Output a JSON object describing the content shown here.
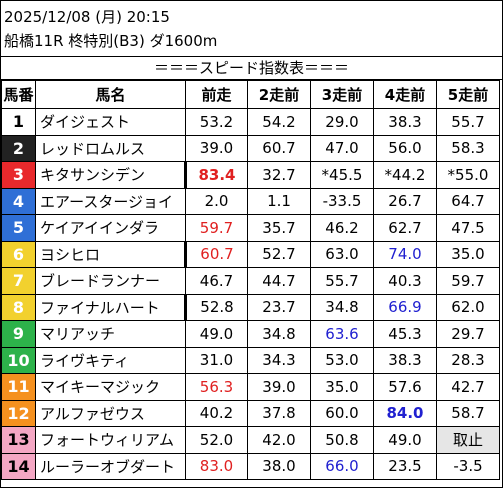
{
  "header": {
    "datetime": "2025/12/08 (月) 20:15",
    "race": "船橋11R 柊特別(B3) ダ1600m",
    "banner": "＝＝＝スピード指数表＝＝＝"
  },
  "columns": [
    "馬番",
    "馬名",
    "前走",
    "2走前",
    "3走前",
    "4走前",
    "5走前"
  ],
  "colors": {
    "frame": [
      "#ffffff",
      "#222222",
      "#e8292c",
      "#2f6fd6",
      "#f2d12e",
      "#2db24a",
      "#f5911f",
      "#f4a7c4"
    ],
    "red_value": "#e02020",
    "blue_value": "#2020d0",
    "scratch_bg": "#e6e6e6"
  },
  "rows": [
    {
      "num": "1",
      "name": "ダイジェスト",
      "frame": 0,
      "v": [
        "53.2",
        "54.2",
        "29.0",
        "38.3",
        "55.7"
      ],
      "red": [],
      "blue": [],
      "bold": []
    },
    {
      "num": "2",
      "name": "レッドロムルス",
      "frame": 1,
      "v": [
        "39.0",
        "60.7",
        "47.0",
        "56.0",
        "58.3"
      ],
      "red": [],
      "blue": [],
      "bold": []
    },
    {
      "num": "3",
      "name": "キタサンシデン",
      "frame": 2,
      "v": [
        "83.4",
        "32.7",
        "*45.5",
        "*44.2",
        "*55.0"
      ],
      "red": [
        0
      ],
      "blue": [],
      "bold": [
        0
      ],
      "mark": true
    },
    {
      "num": "4",
      "name": "エアースタージョイ",
      "frame": 3,
      "v": [
        "2.0",
        "1.1",
        "-33.5",
        "26.7",
        "64.7"
      ],
      "red": [],
      "blue": [],
      "bold": []
    },
    {
      "num": "5",
      "name": "ケイアイインダラ",
      "frame": 3,
      "v": [
        "59.7",
        "35.7",
        "46.2",
        "62.7",
        "47.5"
      ],
      "red": [
        0
      ],
      "blue": [],
      "bold": []
    },
    {
      "num": "6",
      "name": "ヨシヒロ",
      "frame": 4,
      "v": [
        "60.7",
        "52.7",
        "63.0",
        "74.0",
        "35.0"
      ],
      "red": [
        0
      ],
      "blue": [
        3
      ],
      "bold": [],
      "mark": true
    },
    {
      "num": "7",
      "name": "ブレードランナー",
      "frame": 4,
      "v": [
        "46.7",
        "44.7",
        "55.7",
        "40.3",
        "59.7"
      ],
      "red": [],
      "blue": [],
      "bold": []
    },
    {
      "num": "8",
      "name": "ファイナルハート",
      "frame": 4,
      "v": [
        "52.8",
        "23.7",
        "34.8",
        "66.9",
        "62.0"
      ],
      "red": [],
      "blue": [
        3
      ],
      "bold": [],
      "mark": true
    },
    {
      "num": "9",
      "name": "マリアッチ",
      "frame": 5,
      "v": [
        "49.0",
        "34.8",
        "63.6",
        "45.3",
        "29.7"
      ],
      "red": [],
      "blue": [
        2
      ],
      "bold": []
    },
    {
      "num": "10",
      "name": "ライヴキティ",
      "frame": 5,
      "v": [
        "31.0",
        "34.3",
        "53.0",
        "38.3",
        "28.3"
      ],
      "red": [],
      "blue": [],
      "bold": []
    },
    {
      "num": "11",
      "name": "マイキーマジック",
      "frame": 6,
      "v": [
        "56.3",
        "39.0",
        "35.0",
        "57.6",
        "42.7"
      ],
      "red": [
        0
      ],
      "blue": [],
      "bold": []
    },
    {
      "num": "12",
      "name": "アルファゼウス",
      "frame": 6,
      "v": [
        "40.2",
        "37.8",
        "60.0",
        "84.0",
        "58.7"
      ],
      "red": [],
      "blue": [
        3
      ],
      "bold": [
        3
      ]
    },
    {
      "num": "13",
      "name": "フォートウィリアム",
      "frame": 7,
      "v": [
        "52.0",
        "42.0",
        "50.8",
        "49.0",
        "取止"
      ],
      "red": [],
      "blue": [],
      "bold": [],
      "grey": [
        4
      ]
    },
    {
      "num": "14",
      "name": "ルーラーオブダート",
      "frame": 7,
      "v": [
        "83.0",
        "38.0",
        "66.0",
        "23.5",
        "-3.5"
      ],
      "red": [
        0
      ],
      "blue": [
        2
      ],
      "bold": []
    }
  ]
}
